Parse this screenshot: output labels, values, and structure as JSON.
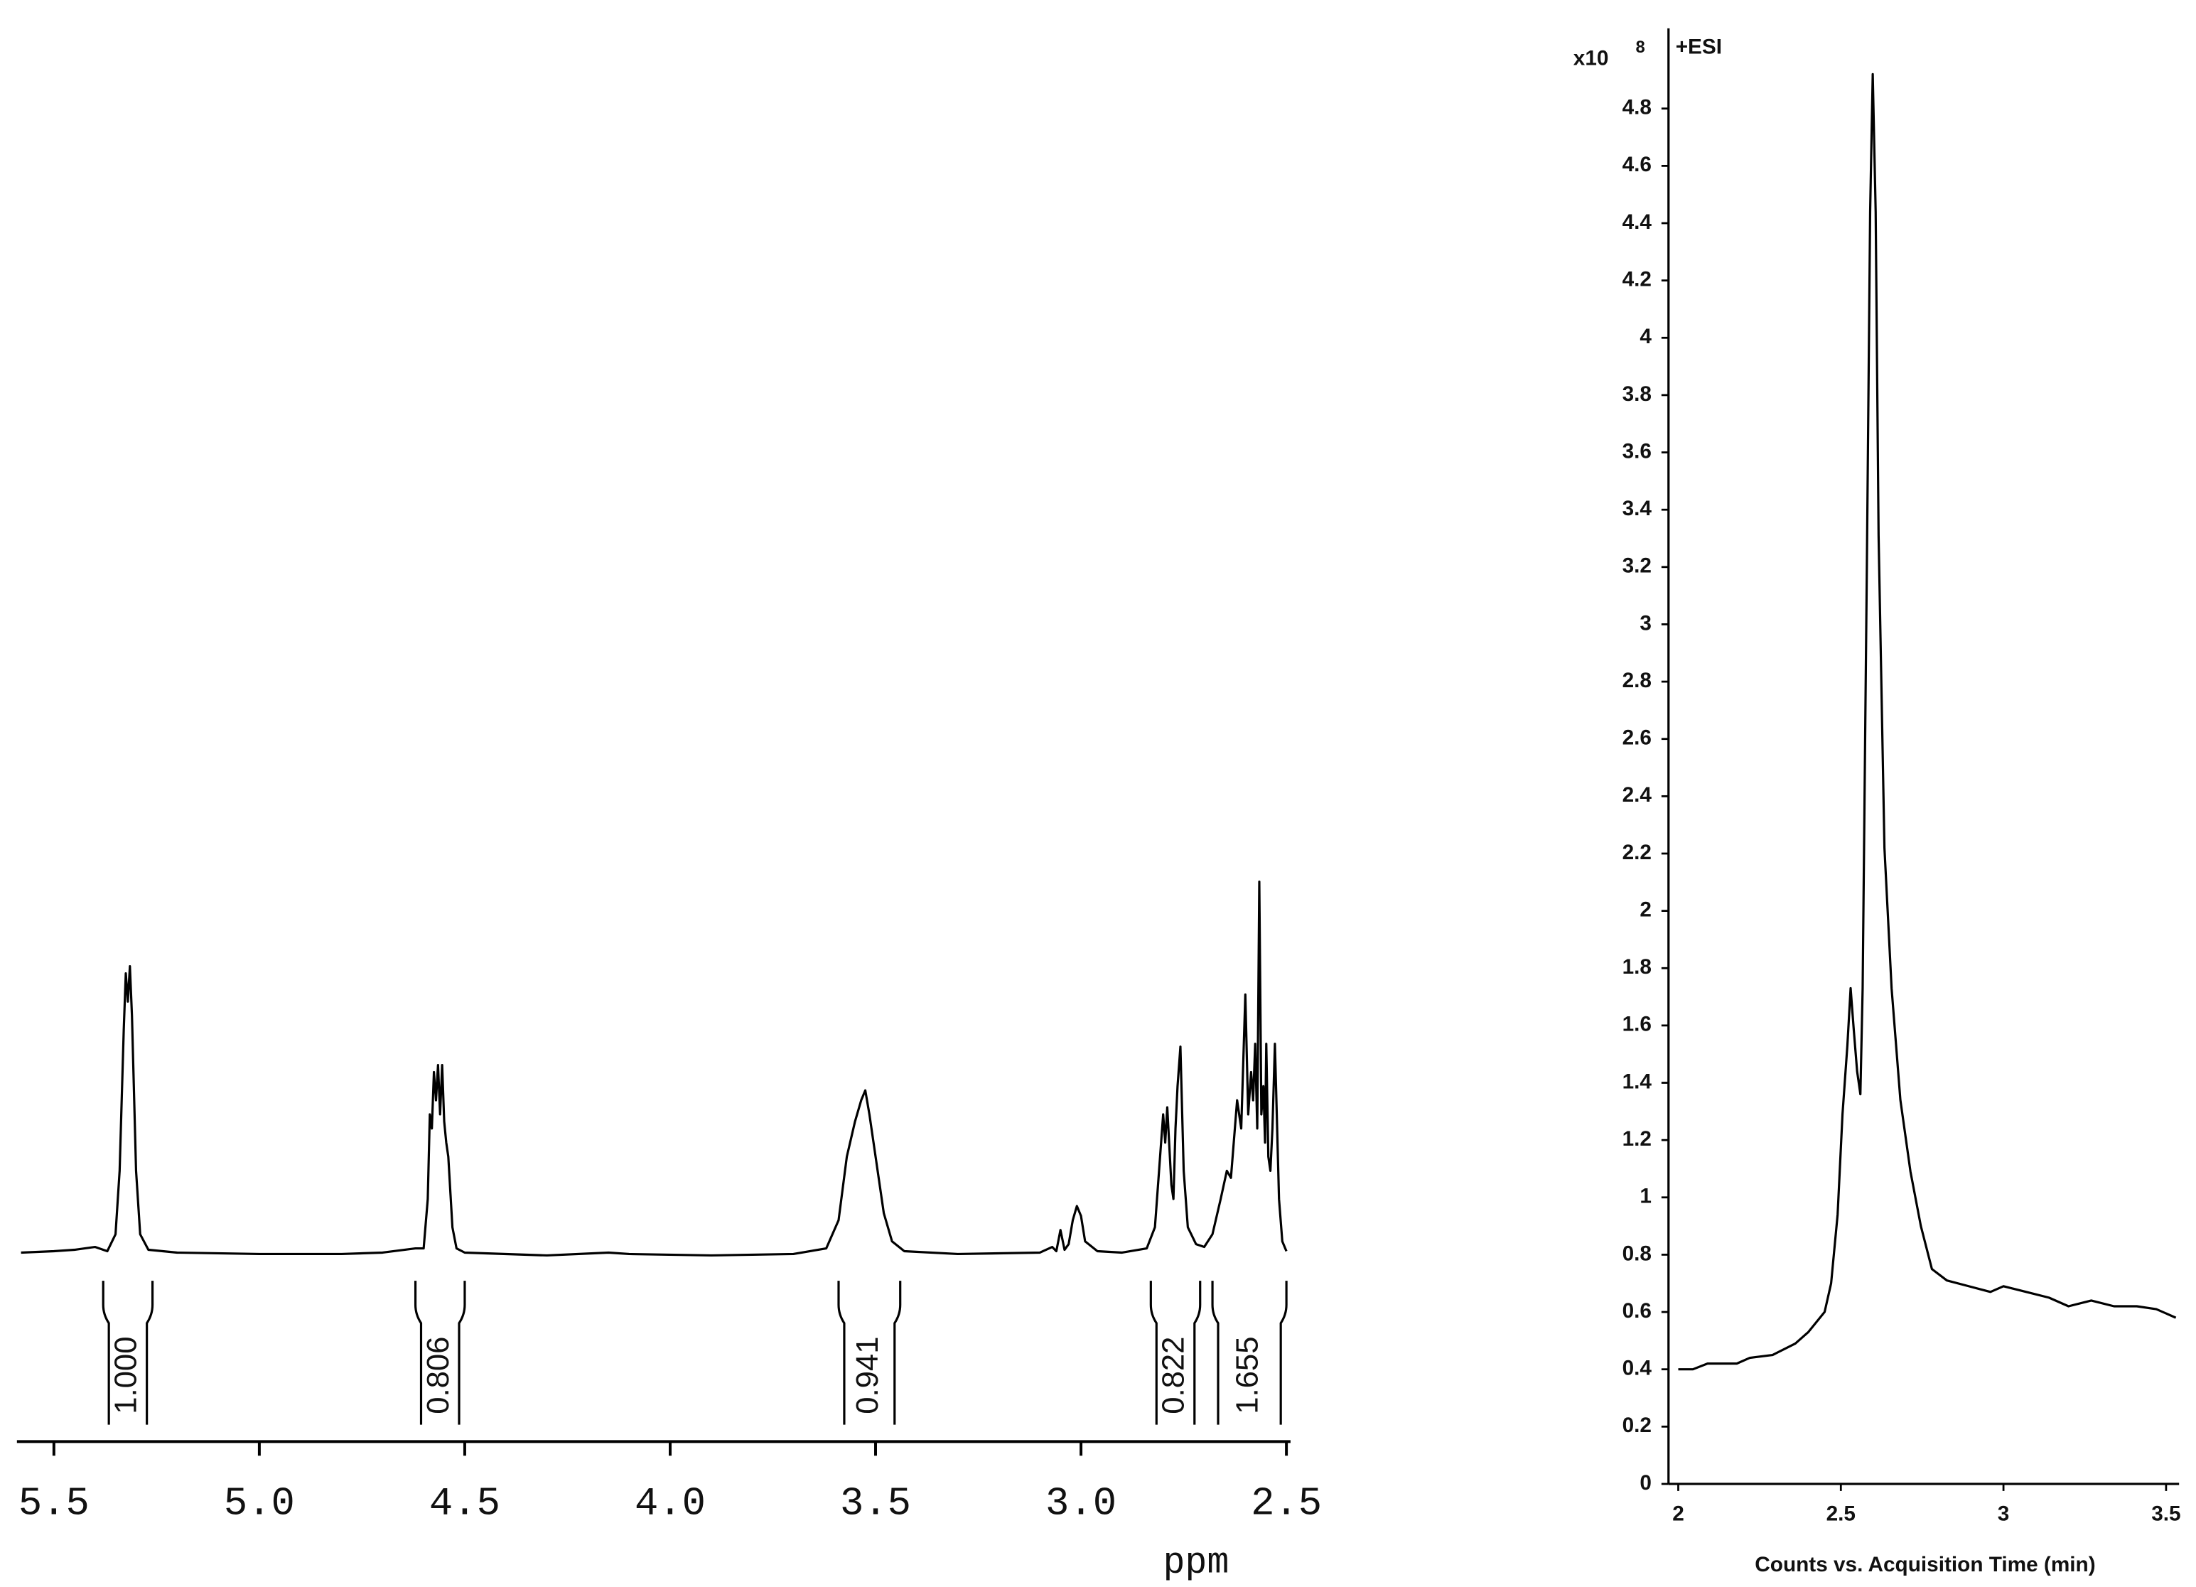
{
  "chart_data": [
    {
      "type": "line",
      "xlabel": "ppm",
      "color": "#000000",
      "xlim": [
        5.59,
        2.49
      ],
      "xticks": [
        {
          "value": 5.5,
          "label": "5.5"
        },
        {
          "value": 5,
          "label": "5.0"
        },
        {
          "value": 4.5,
          "label": "4.5"
        },
        {
          "value": 4,
          "label": "4.0"
        },
        {
          "value": 3.5,
          "label": "3.5"
        },
        {
          "value": 3,
          "label": "3.0"
        },
        {
          "value": 2.5,
          "label": "2.5"
        }
      ],
      "x": [
        5.58,
        5.5,
        5.45,
        5.4,
        5.37,
        5.35,
        5.34,
        5.33,
        5.325,
        5.32,
        5.315,
        5.31,
        5.3,
        5.29,
        5.27,
        5.2,
        5.0,
        4.8,
        4.7,
        4.62,
        4.6,
        4.59,
        4.585,
        4.58,
        4.575,
        4.57,
        4.565,
        4.56,
        4.555,
        4.55,
        4.545,
        4.54,
        4.53,
        4.52,
        4.5,
        4.3,
        4.15,
        4.1,
        3.9,
        3.7,
        3.62,
        3.59,
        3.57,
        3.55,
        3.535,
        3.525,
        3.515,
        3.5,
        3.48,
        3.46,
        3.43,
        3.3,
        3.1,
        3.07,
        3.06,
        3.05,
        3.04,
        3.03,
        3.02,
        3.01,
        3.0,
        2.99,
        2.96,
        2.9,
        2.84,
        2.82,
        2.81,
        2.8,
        2.795,
        2.79,
        2.78,
        2.775,
        2.77,
        2.765,
        2.758,
        2.75,
        2.74,
        2.72,
        2.7,
        2.68,
        2.66,
        2.645,
        2.635,
        2.62,
        2.61,
        2.6,
        2.593,
        2.586,
        2.581,
        2.576,
        2.571,
        2.566,
        2.561,
        2.556,
        2.552,
        2.549,
        2.544,
        2.539,
        2.534,
        2.528,
        2.518,
        2.51,
        2.5
      ],
      "values": [
        2,
        3,
        4,
        6,
        3,
        15,
        60,
        160,
        200,
        180,
        205,
        170,
        60,
        15,
        4,
        2,
        1,
        1,
        2,
        5,
        5,
        40,
        100,
        90,
        130,
        110,
        135,
        100,
        135,
        95,
        80,
        70,
        20,
        5,
        2,
        0,
        2,
        1,
        0,
        1,
        5,
        25,
        70,
        95,
        110,
        117,
        100,
        70,
        30,
        10,
        3,
        1,
        2,
        6,
        3,
        18,
        4,
        8,
        25,
        35,
        28,
        10,
        3,
        2,
        5,
        20,
        60,
        100,
        80,
        105,
        50,
        40,
        90,
        120,
        148,
        60,
        20,
        8,
        6,
        15,
        40,
        60,
        55,
        110,
        90,
        185,
        100,
        130,
        110,
        150,
        90,
        265,
        100,
        120,
        80,
        150,
        70,
        60,
        90,
        150,
        40,
        10,
        3
      ],
      "integrals": [
        {
          "range": [
            5.38,
            5.26
          ],
          "value": 1,
          "label": "1.000"
        },
        {
          "range": [
            4.62,
            4.5
          ],
          "value": 0.806,
          "label": "0.806"
        },
        {
          "range": [
            3.59,
            3.44
          ],
          "value": 0.941,
          "label": "0.941"
        },
        {
          "range": [
            2.83,
            2.71
          ],
          "value": 0.822,
          "label": "0.822"
        },
        {
          "range": [
            2.68,
            2.5
          ],
          "value": 1.655,
          "label": "1.655"
        }
      ]
    },
    {
      "type": "line",
      "color": "#000000",
      "annotation": "+ESI",
      "y_multiplier": {
        "label": "x10",
        "exponent": "8"
      },
      "xlabel": "Counts vs. Acquisition Time (min)",
      "xlim": [
        1.97,
        3.54
      ],
      "ylim": [
        0,
        5.08
      ],
      "xticks": [
        2,
        2.5,
        3,
        3.5
      ],
      "yticks": [
        0,
        0.2,
        0.4,
        0.6,
        0.8,
        1,
        1.2,
        1.4,
        1.6,
        1.8,
        2,
        2.2,
        2.4,
        2.6,
        2.8,
        3,
        3.2,
        3.4,
        3.6,
        3.8,
        4,
        4.2,
        4.4,
        4.6,
        4.8
      ],
      "x": [
        2.0,
        2.045,
        2.09,
        2.18,
        2.22,
        2.29,
        2.36,
        2.4,
        2.45,
        2.47,
        2.49,
        2.505,
        2.52,
        2.53,
        2.54,
        2.55,
        2.56,
        2.567,
        2.58,
        2.59,
        2.598,
        2.607,
        2.616,
        2.634,
        2.656,
        2.683,
        2.714,
        2.746,
        2.78,
        2.826,
        2.893,
        2.96,
        3.0,
        3.07,
        3.14,
        3.2,
        3.27,
        3.34,
        3.41,
        3.47,
        3.53
      ],
      "values": [
        0.4,
        0.4,
        0.42,
        0.42,
        0.44,
        0.45,
        0.49,
        0.53,
        0.6,
        0.7,
        0.94,
        1.29,
        1.53,
        1.73,
        1.58,
        1.44,
        1.36,
        1.73,
        3.21,
        4.44,
        4.92,
        4.44,
        3.31,
        2.22,
        1.73,
        1.34,
        1.09,
        0.9,
        0.75,
        0.71,
        0.69,
        0.67,
        0.69,
        0.67,
        0.65,
        0.62,
        0.64,
        0.62,
        0.62,
        0.61,
        0.58
      ]
    }
  ]
}
